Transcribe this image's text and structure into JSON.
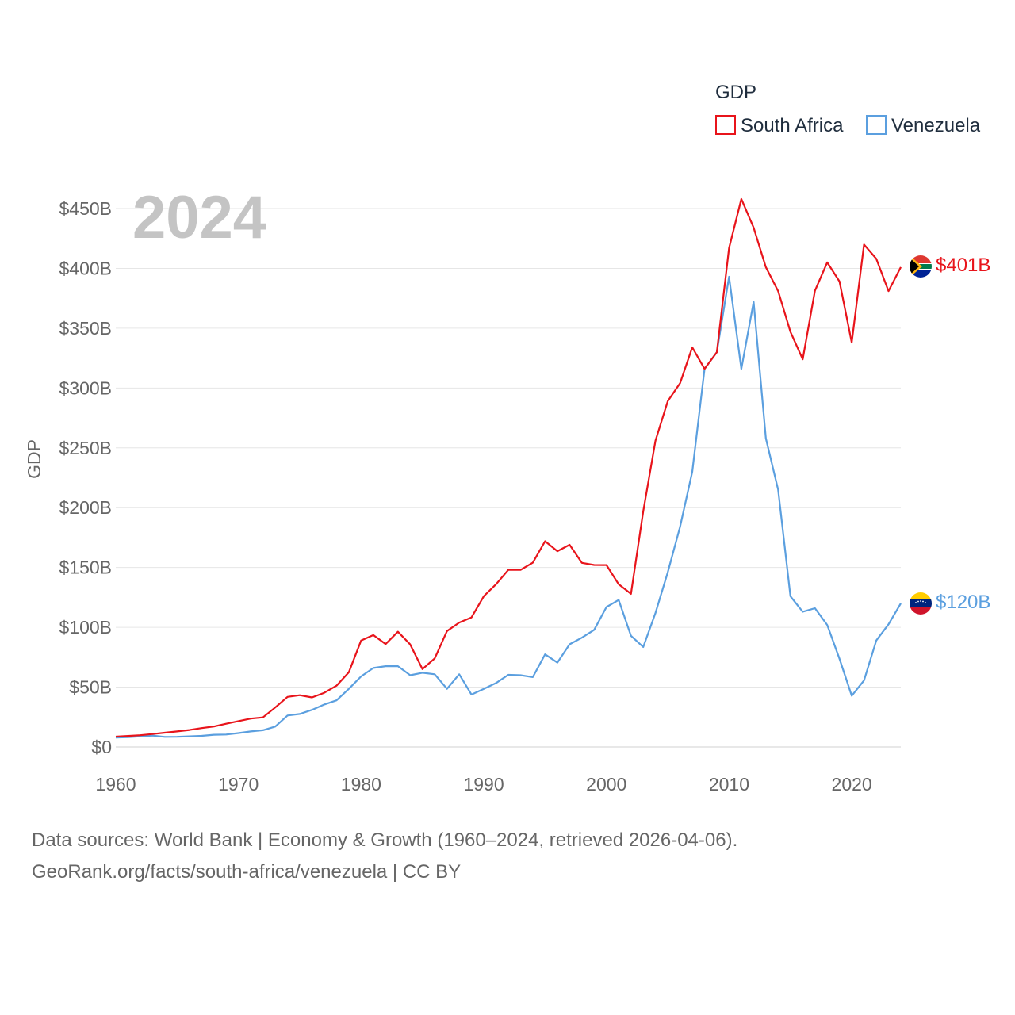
{
  "chart_data": {
    "type": "line",
    "legend_title": "GDP",
    "year_label": "2024",
    "ylabel": "GDP",
    "xlabel": "",
    "xlim": [
      1960,
      2024
    ],
    "ylim": [
      0,
      450
    ],
    "x_ticks": [
      1960,
      1970,
      1980,
      1990,
      2000,
      2010,
      2020
    ],
    "y_ticks": [
      0,
      50,
      100,
      150,
      200,
      250,
      300,
      350,
      400,
      450
    ],
    "y_tick_labels": [
      "$0",
      "$50B",
      "$100B",
      "$150B",
      "$200B",
      "$250B",
      "$300B",
      "$350B",
      "$400B",
      "$450B"
    ],
    "x": [
      1960,
      1961,
      1962,
      1963,
      1964,
      1965,
      1966,
      1967,
      1968,
      1969,
      1970,
      1971,
      1972,
      1973,
      1974,
      1975,
      1976,
      1977,
      1978,
      1979,
      1980,
      1981,
      1982,
      1983,
      1984,
      1985,
      1986,
      1987,
      1988,
      1989,
      1990,
      1991,
      1992,
      1993,
      1994,
      1995,
      1996,
      1997,
      1998,
      1999,
      2000,
      2001,
      2002,
      2003,
      2004,
      2005,
      2006,
      2007,
      2008,
      2009,
      2010,
      2011,
      2012,
      2013,
      2014,
      2015,
      2016,
      2017,
      2018,
      2019,
      2020,
      2021,
      2022,
      2023,
      2024
    ],
    "series": [
      {
        "name": "South Africa",
        "color": "#e8141b",
        "end_label": "$401B",
        "values": [
          8.6,
          9.2,
          9.8,
          10.8,
          11.9,
          13,
          14.2,
          15.8,
          17.1,
          19.4,
          21.6,
          23.7,
          24.7,
          33,
          41.9,
          43.3,
          41.4,
          45.3,
          51.2,
          62.4,
          89,
          93.5,
          86,
          96.3,
          85.7,
          65.1,
          74,
          96.9,
          104,
          108.3,
          126,
          136,
          148,
          148,
          154,
          172,
          163.6,
          169,
          153.9,
          152.1,
          152,
          136,
          128,
          197,
          256,
          289,
          304,
          334,
          316,
          330,
          417,
          458,
          434,
          401,
          381,
          347,
          324,
          381.3,
          405,
          389,
          338,
          419.9,
          408,
          381,
          401
        ]
      },
      {
        "name": "Venezuela",
        "color": "#5b9fdf",
        "end_label": "$120B",
        "values": [
          7.8,
          8.2,
          8.8,
          9.5,
          8.4,
          8.5,
          8.9,
          9.3,
          10.2,
          10.4,
          11.6,
          13,
          14,
          17,
          26.3,
          27.6,
          31,
          35.5,
          39,
          48.6,
          59,
          66,
          67.5,
          67.5,
          60,
          62,
          60.8,
          48.6,
          60.8,
          43.8,
          48.5,
          53.4,
          60.3,
          60,
          58.4,
          77.4,
          70.5,
          85.8,
          91.3,
          97.9,
          117,
          122.9,
          92.9,
          83.6,
          112,
          146,
          184,
          230,
          316,
          330,
          393,
          316,
          372,
          258,
          215,
          126,
          113,
          116,
          102,
          73.6,
          42.8,
          55.6,
          89,
          102.5,
          120
        ]
      }
    ]
  },
  "footer": {
    "line1": "Data sources: World Bank | Economy & Growth (1960–2024, retrieved 2026-04-06).",
    "line2": "GeoRank.org/facts/south-africa/venezuela | CC BY"
  }
}
